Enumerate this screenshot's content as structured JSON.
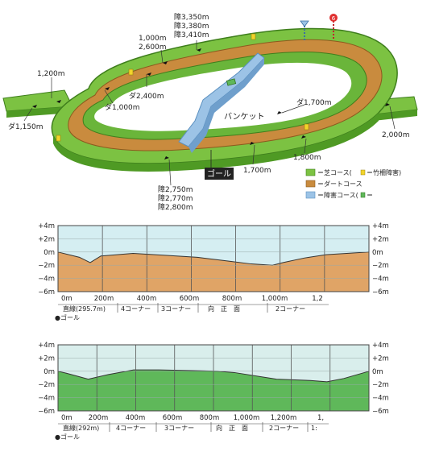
{
  "course_map": {
    "distance_labels": {
      "jump_3350": "障3,350m",
      "jump_3380": "障3,380m",
      "jump_3410": "障3,410m",
      "turf_1000": "1,000m",
      "turf_2600": "2,600m",
      "turf_1200": "1,200m",
      "dirt_1000": "ダ1,000m",
      "dirt_2400": "ダ2,400m",
      "dirt_1150": "ダ1,150m",
      "dirt_1700": "ダ1,700m",
      "turf_2000": "2,000m",
      "turf_1800": "1,800m",
      "turf_1700": "1,700m",
      "jump_2750": "障2,750m",
      "jump_2770": "障2,770m",
      "jump_2800": "障2,800m"
    },
    "banquet_label": "バンケット",
    "goal_label": "ゴール",
    "post_number": "6",
    "legend": {
      "turf": "＝芝コース(",
      "turf_suffix": "＝竹柵障害)",
      "dirt": "＝ダートコース",
      "jump": "＝障害コース(",
      "jump_suffix": "＝"
    },
    "colors": {
      "turf": "#7cc242",
      "turf_dark": "#4f9a24",
      "dirt": "#c98b3e",
      "dirt_light": "#e0a860",
      "jump": "#9cc3e6",
      "goal_bg": "#222222"
    }
  },
  "profiles": [
    {
      "id": "dirt",
      "fill_color": "#e0a466",
      "sky_color": "#d5eef2",
      "y_left_labels": [
        "+4m",
        "+2m",
        "0m",
        "−2m",
        "−4m",
        "−6m"
      ],
      "y_right_labels": [
        "+4m",
        "+2m",
        "0m",
        "−2m",
        "−4m",
        "−6m"
      ],
      "x_labels": [
        "0m",
        "200m",
        "400m",
        "600m",
        "800m",
        "1,000m",
        "1,2"
      ],
      "sections": [
        "直線(295.7m)",
        "4コーナー",
        "3コーナー",
        "向　正　面",
        "2コーナー"
      ],
      "goal_note": "●ゴール",
      "chart_data": {
        "type": "area",
        "x": [
          0,
          100,
          150,
          200,
          350,
          500,
          650,
          800,
          900,
          1000,
          1050,
          1150,
          1250,
          1450
        ],
        "values": [
          0,
          -0.8,
          -1.6,
          -0.6,
          -0.2,
          -0.5,
          -0.8,
          -1.4,
          -1.8,
          -2.0,
          -1.6,
          -0.9,
          -0.4,
          0
        ],
        "ylim": [
          -6,
          4
        ],
        "xlim": [
          0,
          1450
        ]
      }
    },
    {
      "id": "turf",
      "fill_color": "#5fb85a",
      "sky_color": "#d9eeec",
      "y_left_labels": [
        "+4m",
        "+2m",
        "0m",
        "−2m",
        "−4m",
        "−6m"
      ],
      "y_right_labels": [
        "+4m",
        "+2m",
        "0m",
        "−2m",
        "−4m",
        "−6m"
      ],
      "x_labels": [
        "0m",
        "200m",
        "400m",
        "600m",
        "800m",
        "1,000m",
        "1,200m",
        "1,"
      ],
      "sections": [
        "直線(292m)",
        "4コーナー",
        "3コーナー",
        "向　正　面",
        "2コーナー",
        "1:"
      ],
      "goal_note": "●ゴール",
      "chart_data": {
        "type": "area",
        "x": [
          0,
          50,
          180,
          300,
          450,
          600,
          800,
          950,
          1050,
          1300,
          1500,
          1600,
          1700,
          1850
        ],
        "values": [
          0,
          -0.3,
          -1.2,
          -0.5,
          0.2,
          0.2,
          0.1,
          0,
          -0.2,
          -1.2,
          -1.4,
          -1.6,
          -1.1,
          0
        ],
        "ylim": [
          -6,
          4
        ],
        "xlim": [
          0,
          1850
        ]
      }
    }
  ]
}
